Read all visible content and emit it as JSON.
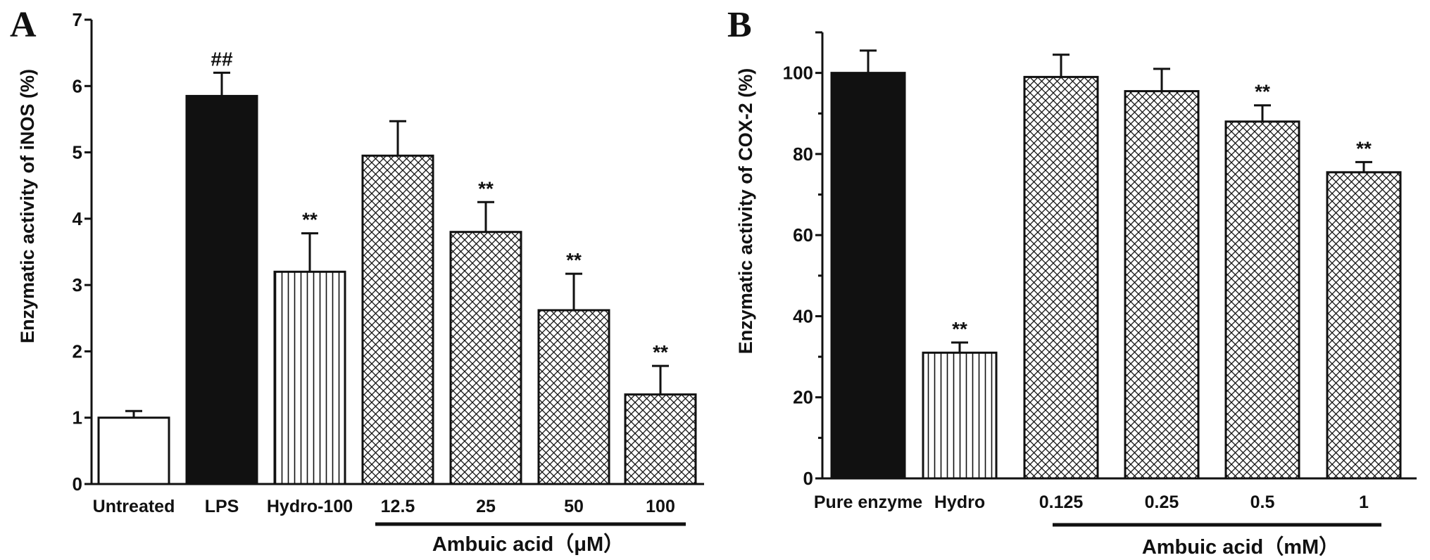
{
  "chart_data": [
    {
      "panel": "A",
      "type": "bar",
      "ylabel": "Enzymatic activity of iNOS (%)",
      "xlabel": "",
      "ylim": [
        0,
        7
      ],
      "yticks": [
        "0",
        "1",
        "2",
        "3",
        "4",
        "5",
        "6",
        "7"
      ],
      "categories": [
        "Untreated",
        "LPS",
        "Hydro-100",
        "12.5",
        "25",
        "50",
        "100"
      ],
      "values": [
        1.0,
        5.85,
        3.2,
        4.95,
        3.8,
        2.62,
        1.35
      ],
      "errors": [
        0.1,
        0.35,
        0.58,
        0.52,
        0.45,
        0.55,
        0.43
      ],
      "patterns": [
        "white",
        "black",
        "vlines",
        "crosshatch",
        "crosshatch",
        "crosshatch",
        "crosshatch"
      ],
      "significance": [
        "",
        "##",
        "**",
        "",
        "**",
        "**",
        "**"
      ],
      "group": {
        "label": "Ambuic acid（μM）",
        "from": 3,
        "to": 6
      }
    },
    {
      "panel": "B",
      "type": "bar",
      "ylabel": "Enzymatic activity of COX-2 (%)",
      "xlabel": "",
      "ylim": [
        0,
        110
      ],
      "yticks": [
        "0",
        "20",
        "40",
        "60",
        "80",
        "100"
      ],
      "categories": [
        "Pure enzyme",
        "Hydro",
        "0.125",
        "0.25",
        "0.5",
        "1"
      ],
      "values": [
        100,
        31,
        99,
        95.5,
        88,
        75.5
      ],
      "errors": [
        5.5,
        2.5,
        5.5,
        5.5,
        4,
        2.5
      ],
      "patterns": [
        "black",
        "vlines",
        "crosshatch",
        "crosshatch",
        "crosshatch",
        "crosshatch"
      ],
      "significance": [
        "",
        "**",
        "",
        "",
        "**",
        "**"
      ],
      "group": {
        "label": "Ambuic acid（mM）",
        "from": 2,
        "to": 5
      }
    }
  ]
}
